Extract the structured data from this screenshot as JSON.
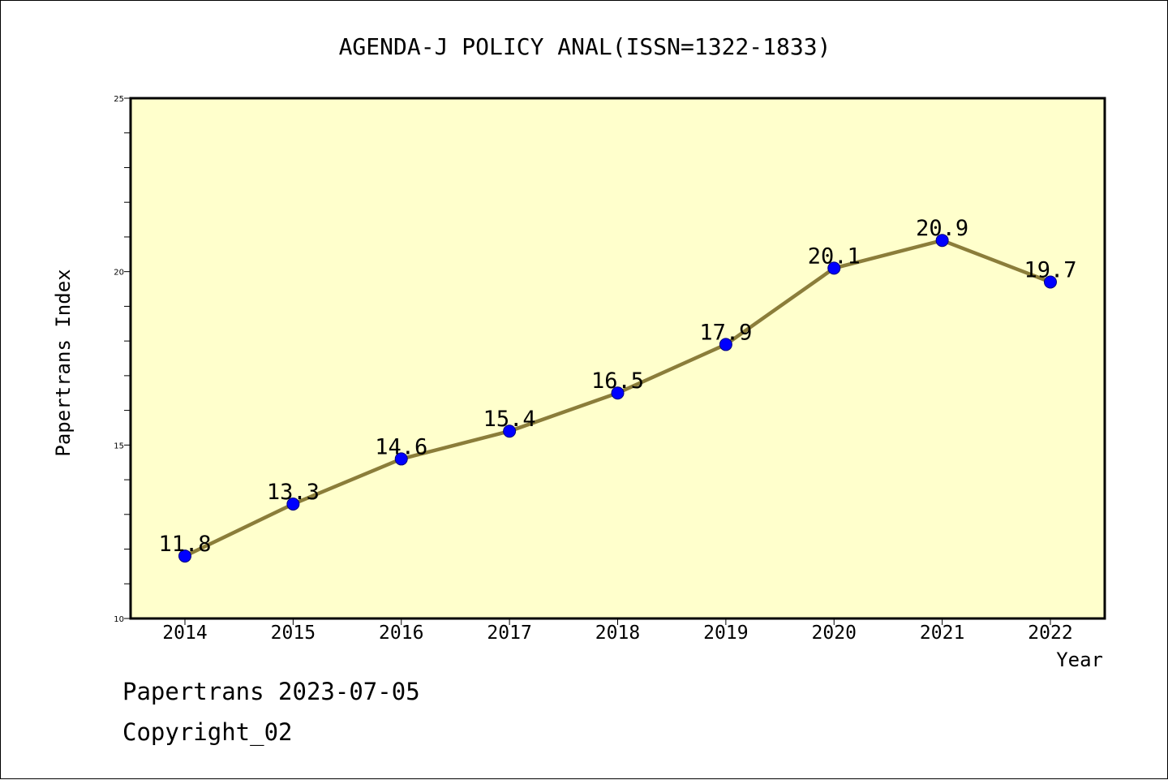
{
  "chart_data": {
    "type": "line",
    "title": "AGENDA-J POLICY ANAL(ISSN=1322-1833)",
    "xlabel": "Year",
    "ylabel": "Papertrans Index",
    "categories": [
      "2014",
      "2015",
      "2016",
      "2017",
      "2018",
      "2019",
      "2020",
      "2021",
      "2022"
    ],
    "series": [
      {
        "values": [
          11.8,
          13.3,
          14.6,
          15.4,
          16.5,
          17.9,
          20.1,
          20.9,
          19.7
        ]
      }
    ],
    "data_labels": [
      "11.8",
      "13.3",
      "14.6",
      "15.4",
      "16.5",
      "17.9",
      "20.1",
      "20.9",
      "19.7"
    ],
    "ylim": [
      10,
      25
    ],
    "yticks": [
      10,
      15,
      20,
      25
    ],
    "y_minor_step": 1,
    "grid": false,
    "legend": "none",
    "colors": {
      "plot_background": "#ffffcc",
      "line": "#8b7d3a",
      "marker_fill": "#0000ff",
      "marker_edge": "#000080"
    }
  },
  "footer": {
    "line1": "Papertrans 2023-07-05",
    "line2": "Copyright_02"
  }
}
